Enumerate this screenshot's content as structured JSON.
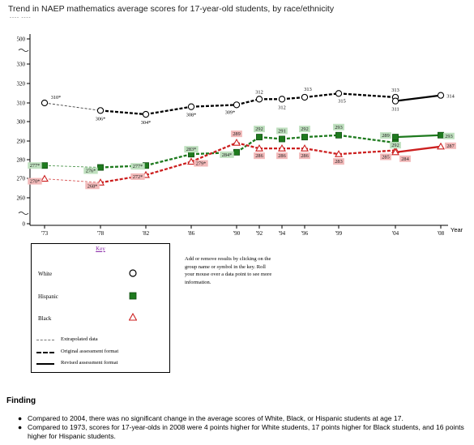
{
  "title": "Trend in NAEP mathematics average scores for 17-year-old students, by race/ethnicity",
  "scale_note": "---- ----",
  "chart_data": {
    "type": "line",
    "title": "Trend in NAEP mathematics average scores for 17-year-old students, by race/ethnicity",
    "xlabel": "Year",
    "ylabel": "",
    "y_axis_break": true,
    "y_ticks": [
      "0",
      "260",
      "270",
      "280",
      "290",
      "300",
      "310",
      "320",
      "330",
      "500"
    ],
    "x_ticks": [
      "'73",
      "'78",
      "'82",
      "'86",
      "'90",
      "'92",
      "'94",
      "'96",
      "'99",
      "'04",
      "'08"
    ],
    "grid": false,
    "legend": "bottom-left",
    "series": [
      {
        "name": "White",
        "color": "#000000",
        "marker": "open-circle",
        "points": [
          {
            "x": "'73",
            "y": 310,
            "label": "310*",
            "format": "extrapolated"
          },
          {
            "x": "'78",
            "y": 306,
            "label": "306*",
            "format": "original"
          },
          {
            "x": "'82",
            "y": 304,
            "label": "304*",
            "format": "original"
          },
          {
            "x": "'86",
            "y": 308,
            "label": "308*",
            "format": "original"
          },
          {
            "x": "'90",
            "y": 309,
            "label": "309*",
            "format": "original"
          },
          {
            "x": "'92",
            "y": 312,
            "label": "312",
            "format": "original"
          },
          {
            "x": "'94",
            "y": 312,
            "label": "312",
            "format": "original"
          },
          {
            "x": "'96",
            "y": 313,
            "label": "313",
            "format": "original"
          },
          {
            "x": "'99",
            "y": 315,
            "label": "315",
            "format": "original"
          },
          {
            "x": "'04",
            "y": 313,
            "label": "313",
            "format": "original"
          },
          {
            "x": "'04",
            "y": 311,
            "label": "311",
            "format": "revised"
          },
          {
            "x": "'08",
            "y": 314,
            "label": "314",
            "format": "revised"
          }
        ]
      },
      {
        "name": "Hispanic",
        "color": "#1e7a1e",
        "marker": "filled-square",
        "points": [
          {
            "x": "'73",
            "y": 277,
            "label": "277*",
            "format": "extrapolated"
          },
          {
            "x": "'78",
            "y": 276,
            "label": "276*",
            "format": "original"
          },
          {
            "x": "'82",
            "y": 277,
            "label": "277*",
            "format": "original"
          },
          {
            "x": "'86",
            "y": 283,
            "label": "283*",
            "format": "original"
          },
          {
            "x": "'90",
            "y": 284,
            "label": "284*",
            "format": "original"
          },
          {
            "x": "'92",
            "y": 292,
            "label": "292",
            "format": "original"
          },
          {
            "x": "'94",
            "y": 291,
            "label": "291",
            "format": "original"
          },
          {
            "x": "'96",
            "y": 292,
            "label": "292",
            "format": "original"
          },
          {
            "x": "'99",
            "y": 293,
            "label": "293",
            "format": "original"
          },
          {
            "x": "'04",
            "y": 289,
            "label": "289",
            "format": "original"
          },
          {
            "x": "'04",
            "y": 292,
            "label": "292",
            "format": "revised"
          },
          {
            "x": "'08",
            "y": 293,
            "label": "293",
            "format": "revised"
          }
        ]
      },
      {
        "name": "Black",
        "color": "#cc1f1f",
        "marker": "open-triangle",
        "points": [
          {
            "x": "'73",
            "y": 270,
            "label": "270*",
            "format": "extrapolated"
          },
          {
            "x": "'78",
            "y": 268,
            "label": "268*",
            "format": "original"
          },
          {
            "x": "'82",
            "y": 272,
            "label": "272*",
            "format": "original"
          },
          {
            "x": "'86",
            "y": 279,
            "label": "279*",
            "format": "original"
          },
          {
            "x": "'90",
            "y": 289,
            "label": "289",
            "format": "original"
          },
          {
            "x": "'92",
            "y": 286,
            "label": "286",
            "format": "original"
          },
          {
            "x": "'94",
            "y": 286,
            "label": "286",
            "format": "original"
          },
          {
            "x": "'96",
            "y": 286,
            "label": "286",
            "format": "original"
          },
          {
            "x": "'99",
            "y": 283,
            "label": "283",
            "format": "original"
          },
          {
            "x": "'04",
            "y": 285,
            "label": "285",
            "format": "original"
          },
          {
            "x": "'04",
            "y": 284,
            "label": "284",
            "format": "revised"
          },
          {
            "x": "'08",
            "y": 287,
            "label": "287",
            "format": "revised"
          }
        ]
      }
    ]
  },
  "key": {
    "title": "Key",
    "groups": [
      {
        "label": "White",
        "color": "#000000"
      },
      {
        "label": "Hispanic",
        "color": "#1e7a1e"
      },
      {
        "label": "Black",
        "color": "#cc1f1f"
      }
    ],
    "line_styles": [
      {
        "label": "Extrapolated data"
      },
      {
        "label": "Original assessment format"
      },
      {
        "label": "Revised assessment format"
      }
    ]
  },
  "note": "Add or remove results by clicking on the group name or symbol in the key. Roll your mouse over a data point to see more information.",
  "finding": {
    "heading": "Finding",
    "bullets": [
      "Compared to 2004, there was no significant change in the average scores of White, Black, or Hispanic students at age 17.",
      "Compared to 1973, scores for 17-year-olds in 2008 were 4 points higher for White students, 17 points higher for Black students, and 16 points higher for Hispanic students."
    ]
  }
}
